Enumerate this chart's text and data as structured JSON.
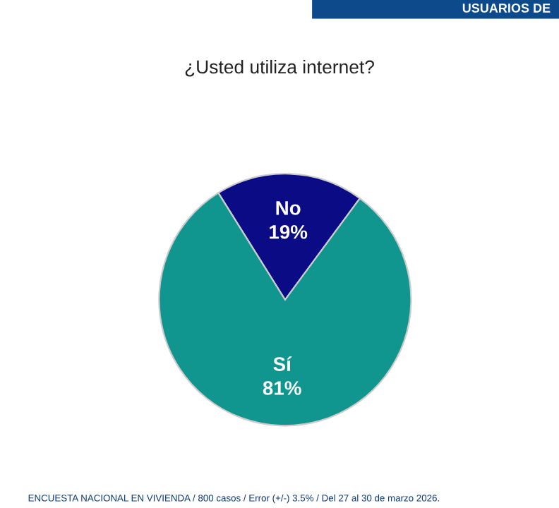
{
  "chart_data": {
    "type": "pie",
    "title": "¿Usted utiliza internet?",
    "categories": [
      "No",
      "Sí"
    ],
    "values": [
      19,
      81
    ],
    "colors": [
      "#0b0b86",
      "#11968f"
    ],
    "value_labels": [
      "19%",
      "81%"
    ],
    "annotations": [
      "USUARIOS DE",
      "ENCUESTA NACIONAL EN VIVIENDA / 800 casos / Error (+/-) 3.5% / Del 27 al 30 de marzo 2026."
    ]
  }
}
